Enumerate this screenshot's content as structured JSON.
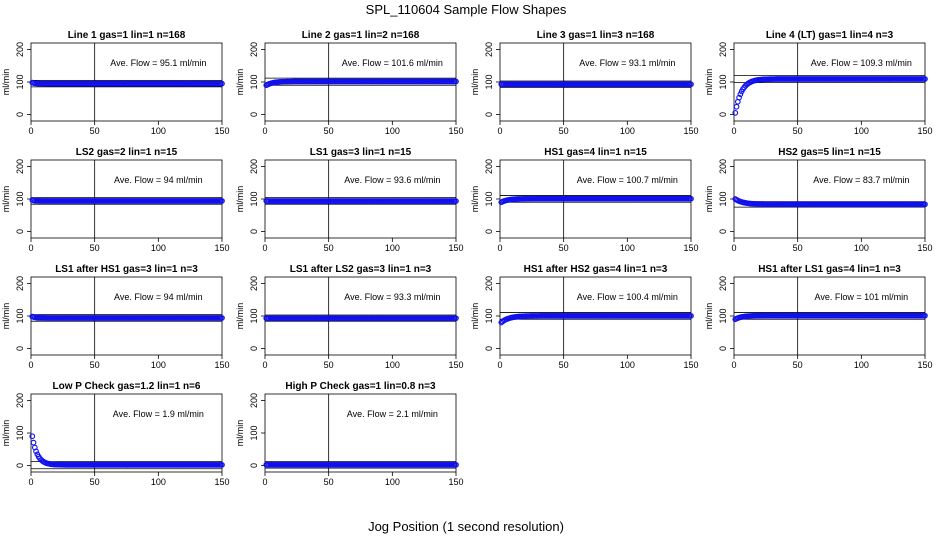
{
  "figure": {
    "title": "SPL_110604  Sample Flow Shapes",
    "xlabel": "Jog Position (1 second resolution)"
  },
  "chart_data": [
    {
      "type": "scatter",
      "title": "Line 1 gas=1 lin=1 n=168",
      "ylabel": "ml/min",
      "annotation": "Ave. Flow =  95.1  ml/min",
      "mean": 95.1,
      "start": 98,
      "tau": 2,
      "xlim": [
        0,
        150
      ],
      "ylim": [
        -20,
        220
      ],
      "xticks": [
        0,
        50,
        100,
        150
      ],
      "yticks": [
        0,
        100,
        200
      ],
      "vline_x": 50,
      "hlines": [
        85,
        105
      ]
    },
    {
      "type": "scatter",
      "title": "Line 2 gas=1 lin=2 n=168",
      "ylabel": "ml/min",
      "annotation": "Ave. Flow =  101.6  ml/min",
      "mean": 101.6,
      "start": 90,
      "tau": 5,
      "xlim": [
        0,
        150
      ],
      "ylim": [
        -20,
        220
      ],
      "xticks": [
        0,
        50,
        100,
        150
      ],
      "yticks": [
        0,
        100,
        200
      ],
      "vline_x": 50,
      "hlines": [
        90,
        112
      ]
    },
    {
      "type": "scatter",
      "title": "Line 3 gas=1 lin=3 n=168",
      "ylabel": "ml/min",
      "annotation": "Ave. Flow =  93.1  ml/min",
      "mean": 93.1,
      "start": 93,
      "tau": 1,
      "xlim": [
        0,
        150
      ],
      "ylim": [
        -20,
        220
      ],
      "xticks": [
        0,
        50,
        100,
        150
      ],
      "yticks": [
        0,
        100,
        200
      ],
      "vline_x": 50,
      "hlines": [
        83,
        103
      ]
    },
    {
      "type": "scatter",
      "title": "Line 4 (LT) gas=1 lin=4 n=3",
      "ylabel": "ml/min",
      "annotation": "Ave. Flow =  109.3  ml/min",
      "mean": 109.3,
      "start": 5,
      "tau": 5,
      "xlim": [
        0,
        150
      ],
      "ylim": [
        -20,
        220
      ],
      "xticks": [
        0,
        50,
        100,
        150
      ],
      "yticks": [
        0,
        100,
        200
      ],
      "vline_x": 50,
      "hlines": [
        98,
        120
      ]
    },
    {
      "type": "scatter",
      "title": "LS2 gas=2 lin=1 n=15",
      "ylabel": "ml/min",
      "annotation": "Ave. Flow =  94  ml/min",
      "mean": 94,
      "start": 97,
      "tau": 2,
      "xlim": [
        0,
        150
      ],
      "ylim": [
        -20,
        220
      ],
      "xticks": [
        0,
        50,
        100,
        150
      ],
      "yticks": [
        0,
        100,
        200
      ],
      "vline_x": 50,
      "hlines": [
        84,
        104
      ]
    },
    {
      "type": "scatter",
      "title": "LS1 gas=3 lin=1 n=15",
      "ylabel": "ml/min",
      "annotation": "Ave. Flow =  93.6  ml/min",
      "mean": 93.6,
      "start": 94,
      "tau": 1,
      "xlim": [
        0,
        150
      ],
      "ylim": [
        -20,
        220
      ],
      "xticks": [
        0,
        50,
        100,
        150
      ],
      "yticks": [
        0,
        100,
        200
      ],
      "vline_x": 50,
      "hlines": [
        84,
        104
      ]
    },
    {
      "type": "scatter",
      "title": "HS1 gas=4 lin=1 n=15",
      "ylabel": "ml/min",
      "annotation": "Ave. Flow =  100.7  ml/min",
      "mean": 100.7,
      "start": 90,
      "tau": 5,
      "xlim": [
        0,
        150
      ],
      "ylim": [
        -20,
        220
      ],
      "xticks": [
        0,
        50,
        100,
        150
      ],
      "yticks": [
        0,
        100,
        200
      ],
      "vline_x": 50,
      "hlines": [
        90,
        111
      ]
    },
    {
      "type": "scatter",
      "title": "HS2 gas=5 lin=1 n=15",
      "ylabel": "ml/min",
      "annotation": "Ave. Flow =  83.7  ml/min",
      "mean": 83.7,
      "start": 100,
      "tau": 6,
      "xlim": [
        0,
        150
      ],
      "ylim": [
        -20,
        220
      ],
      "xticks": [
        0,
        50,
        100,
        150
      ],
      "yticks": [
        0,
        100,
        200
      ],
      "vline_x": 50,
      "hlines": [
        75,
        92
      ]
    },
    {
      "type": "scatter",
      "title": "LS1 after HS1 gas=3 lin=1 n=3",
      "ylabel": "ml/min",
      "annotation": "Ave. Flow =  94  ml/min",
      "mean": 94,
      "start": 98,
      "tau": 3,
      "xlim": [
        0,
        150
      ],
      "ylim": [
        -20,
        220
      ],
      "xticks": [
        0,
        50,
        100,
        150
      ],
      "yticks": [
        0,
        100,
        200
      ],
      "vline_x": 50,
      "hlines": [
        84,
        104
      ]
    },
    {
      "type": "scatter",
      "title": "LS1 after LS2 gas=3 lin=1 n=3",
      "ylabel": "ml/min",
      "annotation": "Ave. Flow =  93.3  ml/min",
      "mean": 93.3,
      "start": 93,
      "tau": 1,
      "xlim": [
        0,
        150
      ],
      "ylim": [
        -20,
        220
      ],
      "xticks": [
        0,
        50,
        100,
        150
      ],
      "yticks": [
        0,
        100,
        200
      ],
      "vline_x": 50,
      "hlines": [
        84,
        103
      ]
    },
    {
      "type": "scatter",
      "title": "HS1 after HS2 gas=4 lin=1 n=3",
      "ylabel": "ml/min",
      "annotation": "Ave. Flow =  100.4  ml/min",
      "mean": 100.4,
      "start": 80,
      "tau": 6,
      "xlim": [
        0,
        150
      ],
      "ylim": [
        -20,
        220
      ],
      "xticks": [
        0,
        50,
        100,
        150
      ],
      "yticks": [
        0,
        100,
        200
      ],
      "vline_x": 50,
      "hlines": [
        90,
        111
      ]
    },
    {
      "type": "scatter",
      "title": "HS1 after LS1 gas=4 lin=1 n=3",
      "ylabel": "ml/min",
      "annotation": "Ave. Flow =  101  ml/min",
      "mean": 101,
      "start": 90,
      "tau": 5,
      "xlim": [
        0,
        150
      ],
      "ylim": [
        -20,
        220
      ],
      "xticks": [
        0,
        50,
        100,
        150
      ],
      "yticks": [
        0,
        100,
        200
      ],
      "vline_x": 50,
      "hlines": [
        90,
        111
      ]
    },
    {
      "type": "scatter",
      "title": "Low P Check gas=1.2 lin=1 n=6",
      "ylabel": "ml/min",
      "annotation": "Ave. Flow =  1.9  ml/min",
      "mean": 1.9,
      "start": 90,
      "tau": 4,
      "xlim": [
        0,
        150
      ],
      "ylim": [
        -20,
        220
      ],
      "xticks": [
        0,
        50,
        100,
        150
      ],
      "yticks": [
        0,
        100,
        200
      ],
      "vline_x": 50,
      "hlines": [
        -10,
        12
      ]
    },
    {
      "type": "scatter",
      "title": "High P Check gas=1 lin=0.8 n=3",
      "ylabel": "ml/min",
      "annotation": "Ave. Flow =  2.1  ml/min",
      "mean": 2.1,
      "start": 2.1,
      "tau": 1,
      "xlim": [
        0,
        150
      ],
      "ylim": [
        -20,
        220
      ],
      "xticks": [
        0,
        50,
        100,
        150
      ],
      "yticks": [
        0,
        100,
        200
      ],
      "vline_x": 50,
      "hlines": [
        -8,
        12
      ]
    }
  ],
  "colors": {
    "points": "#1010ee",
    "axis": "#000000"
  }
}
